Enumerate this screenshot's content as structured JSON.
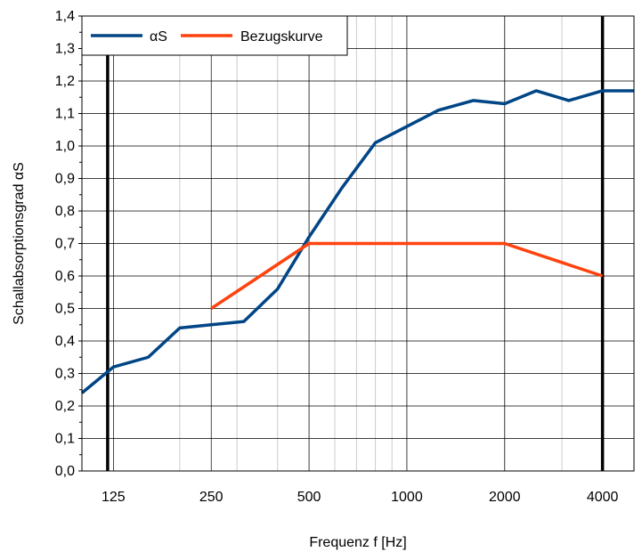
{
  "chart_data": {
    "type": "line",
    "xlabel": "Frequenz f [Hz]",
    "ylabel": "Schallabsorptionsgrad αS",
    "x_scale": "log",
    "xlim": [
      100,
      5000
    ],
    "ylim": [
      0,
      1.4
    ],
    "y_ticks": [
      "0,0",
      "0,1",
      "0,2",
      "0,3",
      "0,4",
      "0,5",
      "0,6",
      "0,7",
      "0,8",
      "0,9",
      "1,0",
      "1,1",
      "1,2",
      "1,3",
      "1,4"
    ],
    "x_ticks": [
      {
        "value": 125,
        "label": "125"
      },
      {
        "value": 250,
        "label": "250"
      },
      {
        "value": 500,
        "label": "500"
      },
      {
        "value": 1000,
        "label": "1000"
      },
      {
        "value": 2000,
        "label": "2000"
      },
      {
        "value": 4000,
        "label": "4000"
      }
    ],
    "grid": true,
    "legend_position": "top-left",
    "reference_lines": [
      {
        "x": 120,
        "color": "#000000"
      },
      {
        "x": 4000,
        "color": "#000000"
      }
    ],
    "series": [
      {
        "name": "αS",
        "color": "#004586",
        "x": [
          100,
          125,
          160,
          200,
          250,
          315,
          400,
          500,
          630,
          800,
          1000,
          1250,
          1600,
          2000,
          2500,
          3150,
          4000,
          5000
        ],
        "y": [
          0.24,
          0.32,
          0.35,
          0.44,
          0.45,
          0.46,
          0.56,
          0.72,
          0.87,
          1.01,
          1.06,
          1.11,
          1.14,
          1.13,
          1.17,
          1.14,
          1.17,
          1.17
        ]
      },
      {
        "name": "Bezugskurve",
        "color": "#ff420e",
        "x": [
          250,
          500,
          2000,
          4000
        ],
        "y": [
          0.5,
          0.7,
          0.7,
          0.6
        ]
      }
    ]
  }
}
